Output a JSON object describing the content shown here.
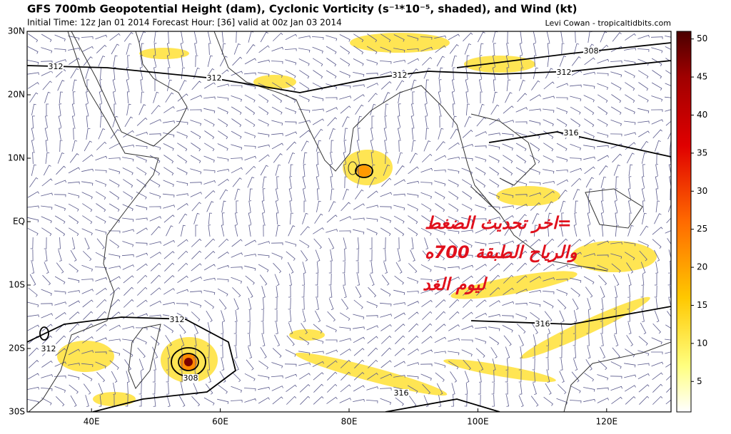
{
  "map": {
    "title": "GFS 700mb Geopotential Height (dam), Cyclonic Vorticity (s⁻¹*10⁻⁵, shaded), and Wind (kt)",
    "subtitle": "Initial Time: 12z Jan 01 2014 Forecast Hour: [36] valid at 00z Jan 03 2014",
    "credit": "Levi Cowan - tropicaltidbits.com",
    "xlim": [
      30,
      130
    ],
    "ylim": [
      -30,
      30
    ],
    "xticks": [
      {
        "value": 40,
        "label": "40E"
      },
      {
        "value": 60,
        "label": "60E"
      },
      {
        "value": 80,
        "label": "80E"
      },
      {
        "value": 100,
        "label": "100E"
      },
      {
        "value": 120,
        "label": "120E"
      }
    ],
    "yticks": [
      {
        "value": 30,
        "label": "30N"
      },
      {
        "value": 20,
        "label": "20N"
      },
      {
        "value": 10,
        "label": "10N"
      },
      {
        "value": 0,
        "label": "EQ"
      },
      {
        "value": -10,
        "label": "10S"
      },
      {
        "value": -20,
        "label": "20S"
      },
      {
        "value": -30,
        "label": "30S"
      }
    ],
    "colorbar": {
      "lim": [
        1,
        51
      ],
      "ticks": [
        5,
        10,
        15,
        20,
        25,
        30,
        35,
        40,
        45,
        50
      ]
    },
    "contour_labels": [
      312,
      312,
      312,
      312,
      308,
      316,
      316,
      316,
      312,
      312,
      308
    ],
    "annotation": [
      "=اخر تحديث الضغط",
      "والرياح الطبقة 700ه",
      "ليوم الغد"
    ]
  }
}
